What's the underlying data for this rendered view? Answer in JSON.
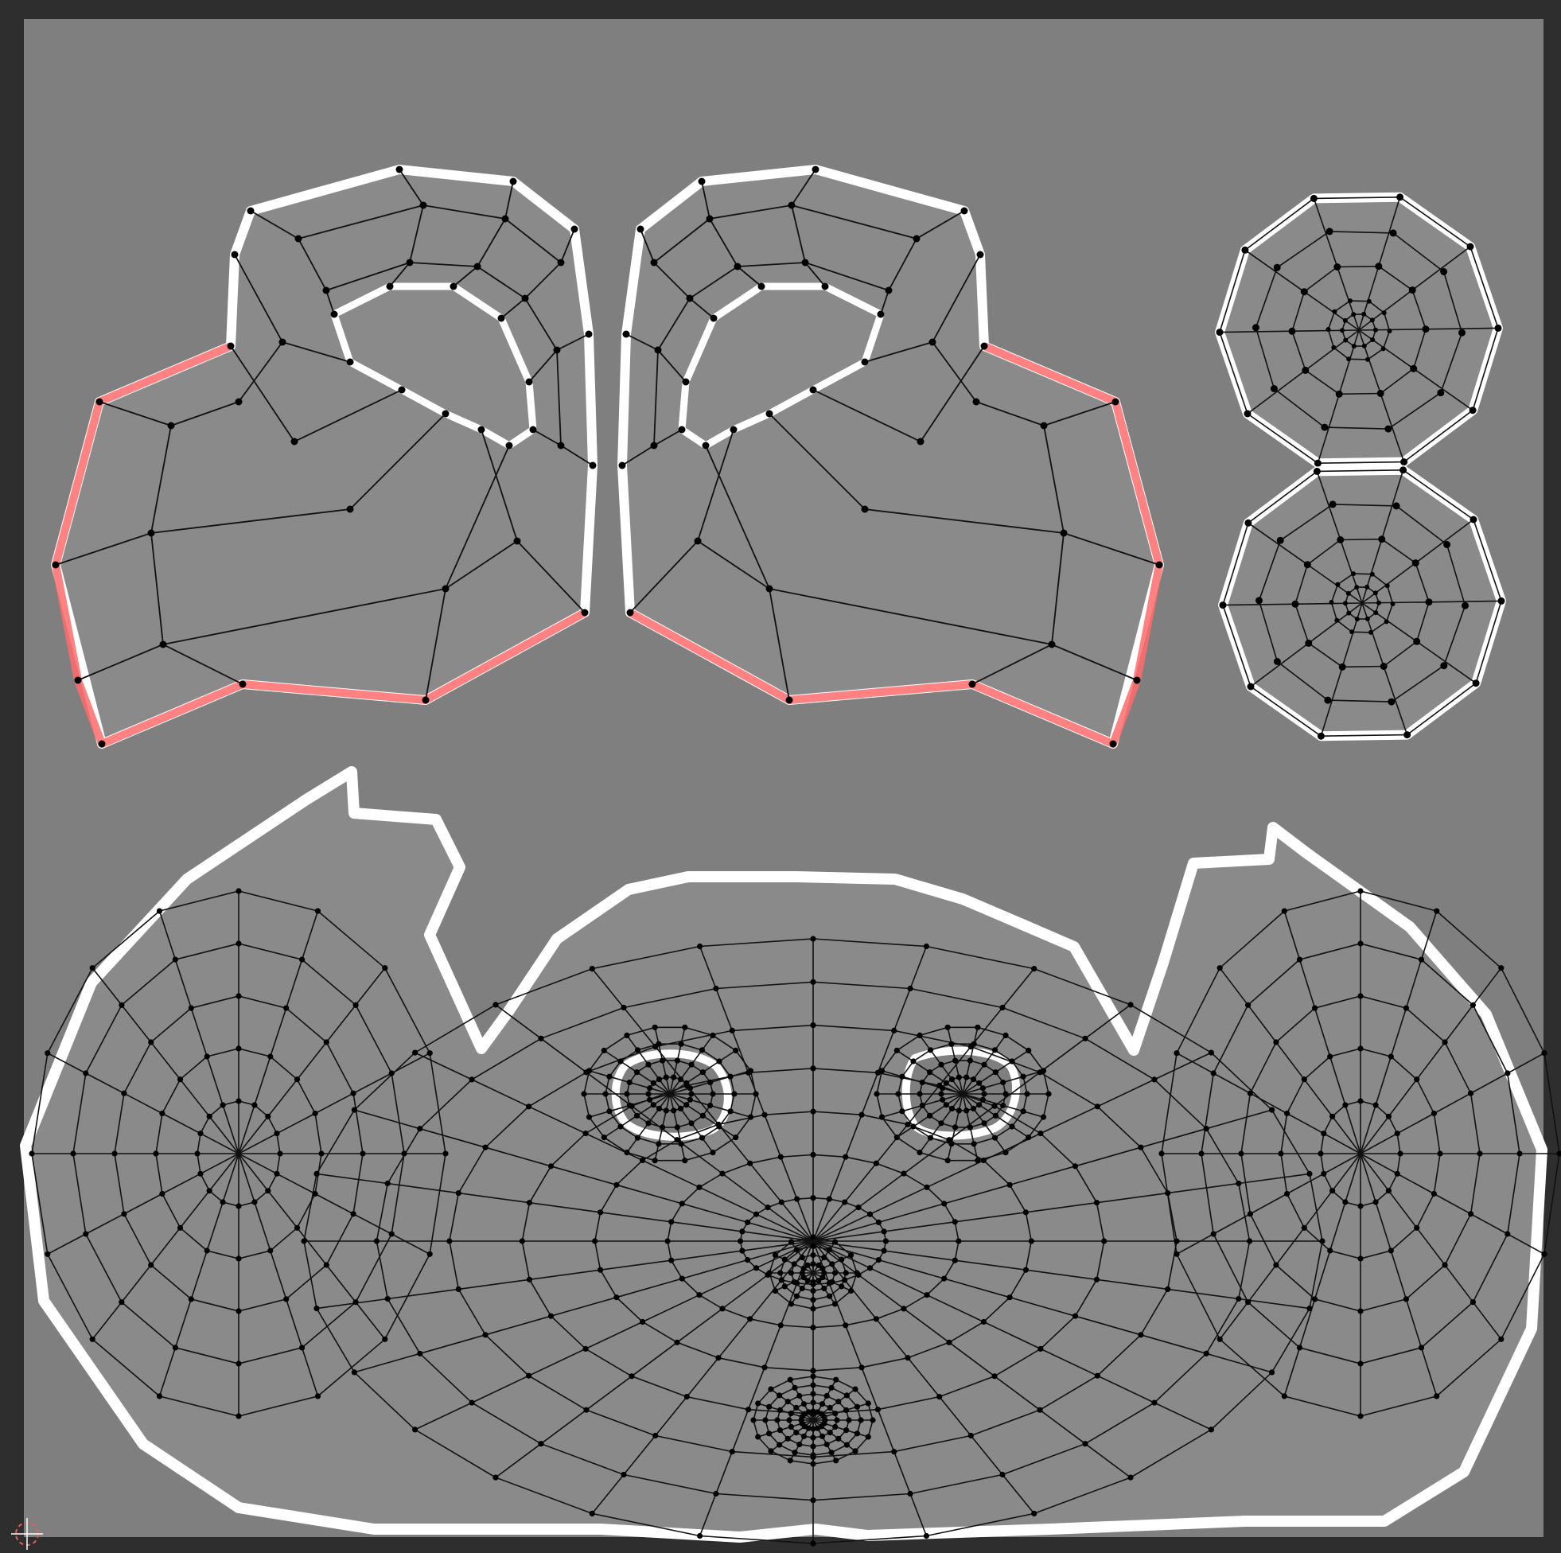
{
  "editor": {
    "type": "uv-editor",
    "theme": {
      "frame": "#2e2e2e",
      "texture_area": "#7f7f7f",
      "face_fill": "#8a8a8a",
      "island_outline": "#ffffff",
      "edge": "#111111",
      "vertex": "#000000",
      "seam": "#ff6b6b",
      "cursor": "#e06060"
    },
    "islands": [
      {
        "name": "ear-left",
        "seam": "outer-left"
      },
      {
        "name": "ear-right",
        "seam": "outer-right"
      },
      {
        "name": "eye-upper",
        "rings": 4,
        "spokes": 10
      },
      {
        "name": "eye-lower",
        "rings": 4,
        "spokes": 10
      },
      {
        "name": "head",
        "holes": 2
      }
    ],
    "cursor_icon": "2d-cursor-icon"
  }
}
